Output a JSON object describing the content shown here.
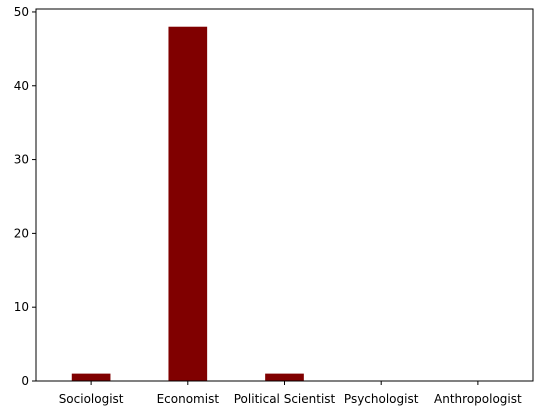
{
  "chart_data": {
    "type": "bar",
    "categories": [
      "Sociologist",
      "Economist",
      "Political Scientist",
      "Psychologist",
      "Anthropologist"
    ],
    "values": [
      1,
      48,
      1,
      0,
      0
    ],
    "title": "",
    "xlabel": "",
    "ylabel": "",
    "ylim": [
      0,
      50.4
    ],
    "yticks": [
      0,
      10,
      20,
      30,
      40,
      50
    ],
    "grid": false,
    "bar_color": "#800000"
  }
}
